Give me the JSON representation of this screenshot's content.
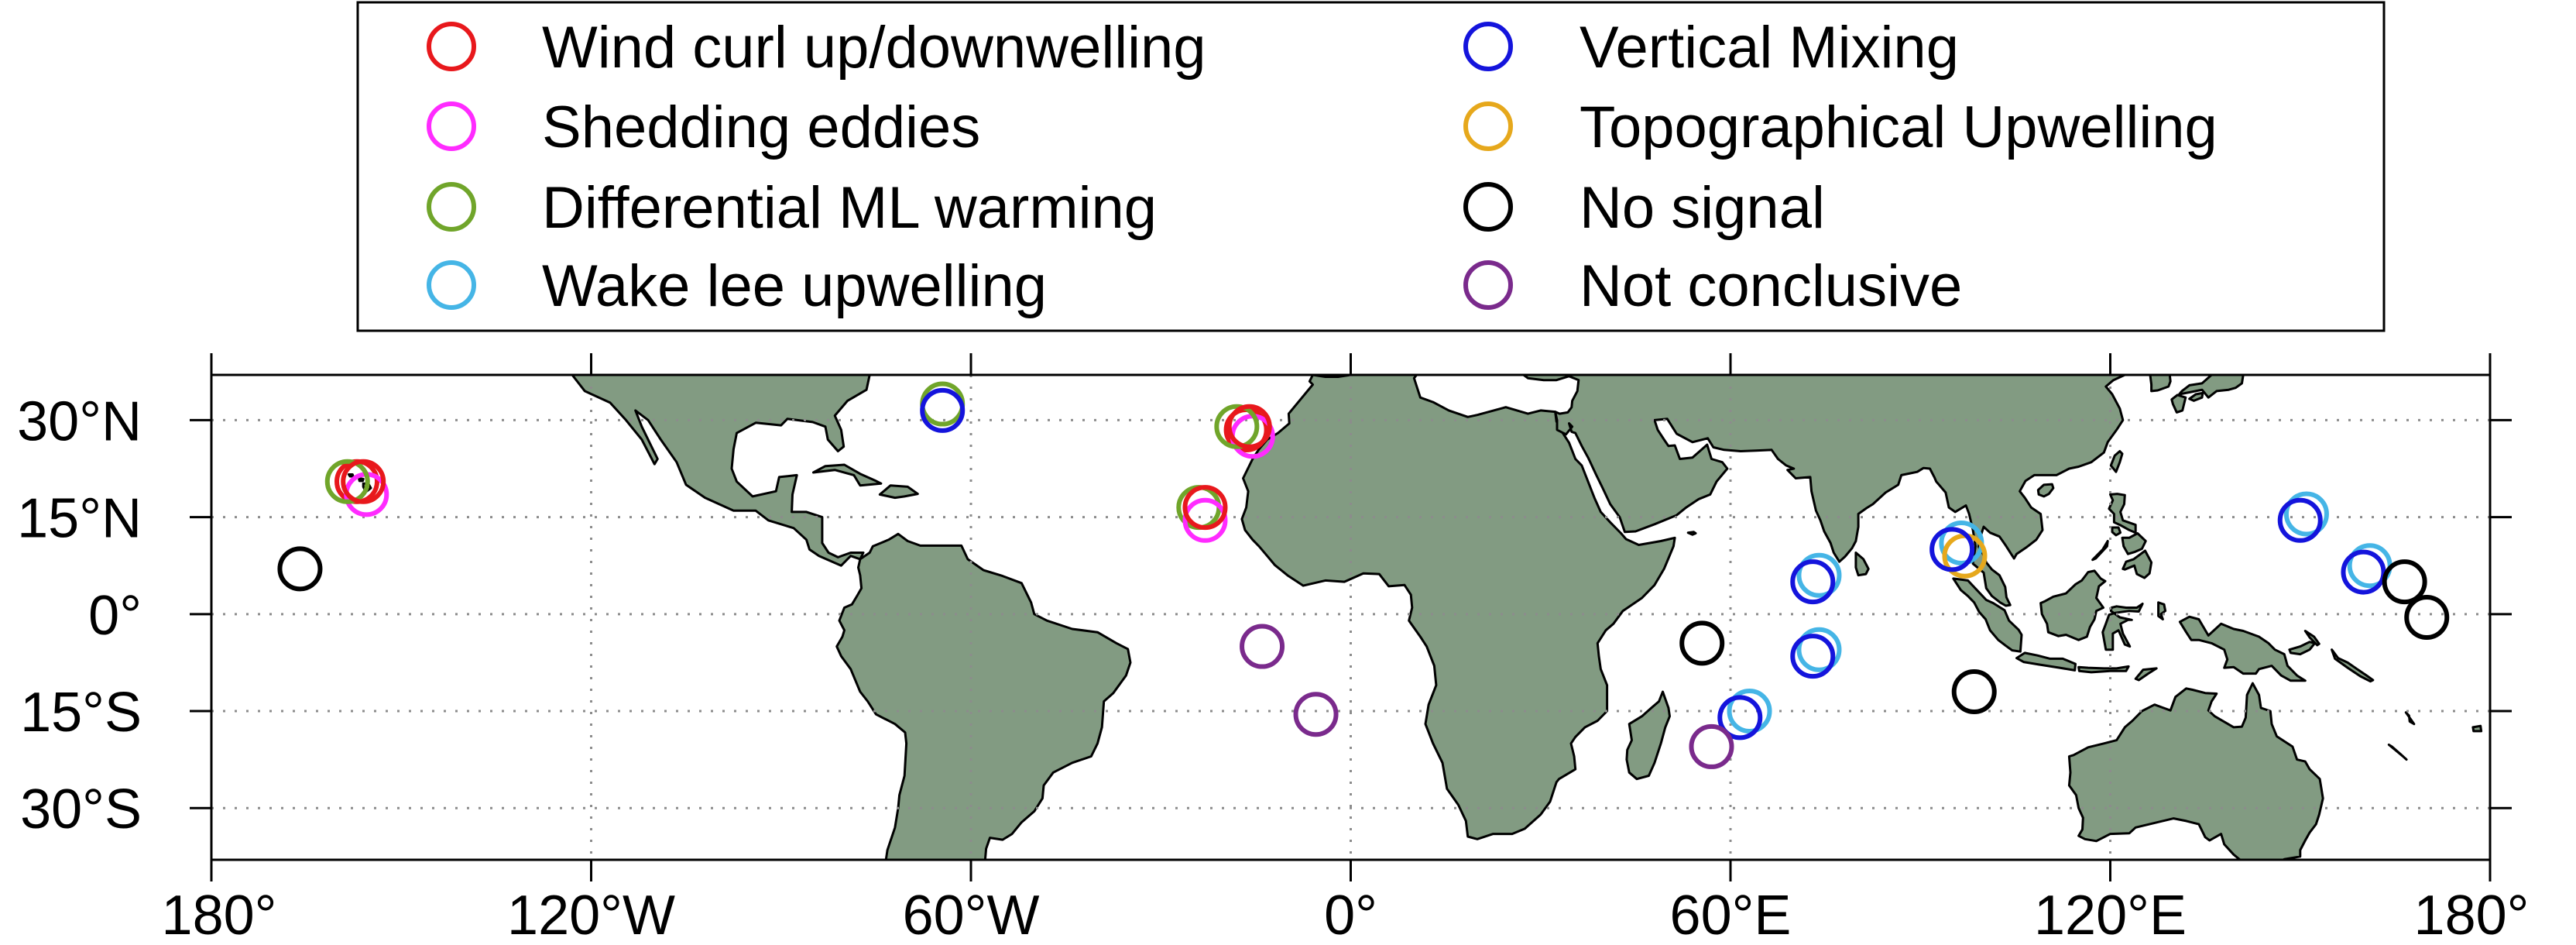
{
  "legend": {
    "entries": [
      {
        "label": "Wind curl up/downwelling",
        "color": "#e8181c"
      },
      {
        "label": "Shedding eddies",
        "color": "#ff2bff"
      },
      {
        "label": "Differential ML warming",
        "color": "#70a52a"
      },
      {
        "label": "Wake lee upwelling",
        "color": "#45b5e6"
      },
      {
        "label": "Vertical Mixing",
        "color": "#1414dc"
      },
      {
        "label": "Topographical Upwelling",
        "color": "#e6a81c"
      },
      {
        "label": "No signal",
        "color": "#000000"
      },
      {
        "label": "Not conclusive",
        "color": "#7a2a8c"
      }
    ]
  },
  "map": {
    "land_color": "#829b82",
    "lon_range": [
      -180,
      180
    ],
    "lat_range": [
      -38,
      37
    ],
    "x_ticks": [
      {
        "lon": -180,
        "label": "180°"
      },
      {
        "lon": -120,
        "label": "120°W"
      },
      {
        "lon": -60,
        "label": "60°W"
      },
      {
        "lon": 0,
        "label": "0°"
      },
      {
        "lon": 60,
        "label": "60°E"
      },
      {
        "lon": 120,
        "label": "120°E"
      },
      {
        "lon": 180,
        "label": "180°"
      }
    ],
    "y_ticks": [
      {
        "lat": 30,
        "label": "30°N"
      },
      {
        "lat": 15,
        "label": "15°N"
      },
      {
        "lat": 0,
        "label": "0°"
      },
      {
        "lat": -15,
        "label": "15°S"
      },
      {
        "lat": -30,
        "label": "30°S"
      }
    ],
    "markers": [
      {
        "lon": -157,
        "lat": 20.5,
        "cat": 0
      },
      {
        "lon": -155.5,
        "lat": 18.5,
        "cat": 1
      },
      {
        "lon": -158.5,
        "lat": 20.5,
        "cat": 2
      },
      {
        "lon": -156,
        "lat": 20.5,
        "cat": 0
      },
      {
        "lon": -166,
        "lat": 7,
        "cat": 6
      },
      {
        "lon": -64.5,
        "lat": 32.5,
        "cat": 2
      },
      {
        "lon": -64.5,
        "lat": 31.5,
        "cat": 4
      },
      {
        "lon": -16.5,
        "lat": 28.5,
        "cat": 0
      },
      {
        "lon": -15.5,
        "lat": 27.5,
        "cat": 1
      },
      {
        "lon": -18,
        "lat": 29,
        "cat": 2
      },
      {
        "lon": -16,
        "lat": 29,
        "cat": 0
      },
      {
        "lon": -24,
        "lat": 16.5,
        "cat": 2
      },
      {
        "lon": -23,
        "lat": 14.5,
        "cat": 1
      },
      {
        "lon": -23,
        "lat": 16.5,
        "cat": 0
      },
      {
        "lon": -14,
        "lat": -5,
        "cat": 7
      },
      {
        "lon": -5.5,
        "lat": -15.5,
        "cat": 7
      },
      {
        "lon": 55.5,
        "lat": -4.5,
        "cat": 6
      },
      {
        "lon": 63,
        "lat": -15,
        "cat": 3
      },
      {
        "lon": 61.5,
        "lat": -16,
        "cat": 4
      },
      {
        "lon": 57,
        "lat": -20.5,
        "cat": 7
      },
      {
        "lon": 74,
        "lat": 6,
        "cat": 3
      },
      {
        "lon": 73,
        "lat": 5,
        "cat": 4
      },
      {
        "lon": 74,
        "lat": -5.5,
        "cat": 3
      },
      {
        "lon": 73,
        "lat": -6.5,
        "cat": 4
      },
      {
        "lon": 96.5,
        "lat": 11,
        "cat": 3
      },
      {
        "lon": 97,
        "lat": 9,
        "cat": 5
      },
      {
        "lon": 95,
        "lat": 10,
        "cat": 4
      },
      {
        "lon": 98.5,
        "lat": -12,
        "cat": 6
      },
      {
        "lon": 151,
        "lat": 15.5,
        "cat": 3
      },
      {
        "lon": 150,
        "lat": 14.5,
        "cat": 4
      },
      {
        "lon": 161,
        "lat": 7.5,
        "cat": 3
      },
      {
        "lon": 160,
        "lat": 6.5,
        "cat": 4
      },
      {
        "lon": 166.5,
        "lat": 5,
        "cat": 6
      },
      {
        "lon": 170,
        "lat": -0.5,
        "cat": 6
      }
    ]
  }
}
